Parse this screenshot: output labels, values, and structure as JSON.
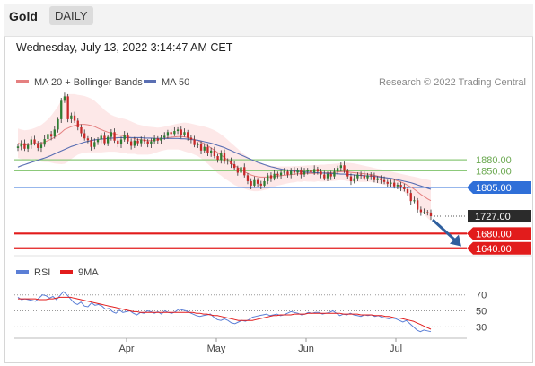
{
  "header": {
    "instrument": "Gold",
    "timeframe": "DAILY"
  },
  "datetime": "Wednesday, July 13, 2022 3:14:47 AM CET",
  "legend": {
    "ma20_label": "MA 20 + Bollinger Bands",
    "ma50_label": "MA 50",
    "credit": "Research © 2022 Trading Central"
  },
  "rsi_legend": {
    "rsi_label": "RSI",
    "ma_label": "9MA"
  },
  "colors": {
    "candle_up": "#2e7d32",
    "candle_down": "#c62828",
    "ma20": "#e58080",
    "bands": "#fbd5d5",
    "ma50": "#5a6fb3",
    "support_red": "#e21c1c",
    "pivot_blue": "#2f6fd8",
    "resistance_green": "#8cc97a",
    "price": "#2b2b2b",
    "rsi": "#5b7fd6",
    "rsi_ma": "#e21c1c"
  },
  "chart_data": [
    {
      "type": "candlestick",
      "title": "Gold",
      "timeframe": "DAILY",
      "xlabel": "",
      "ylabel": "",
      "x_ticks": [
        "Apr",
        "May",
        "Jun",
        "Jul"
      ],
      "ylim": [
        1620,
        2070
      ],
      "close": [
        1916,
        1925,
        1910,
        1920,
        1935,
        1925,
        1912,
        1921,
        1936,
        1950,
        1943,
        1962,
        1990,
        2040,
        2052,
        1990,
        2000,
        1986,
        1968,
        1952,
        1938,
        1933,
        1915,
        1928,
        1935,
        1945,
        1925,
        1942,
        1955,
        1932,
        1922,
        1935,
        1948,
        1930,
        1918,
        1932,
        1925,
        1935,
        1930,
        1922,
        1930,
        1938,
        1932,
        1940,
        1945,
        1955,
        1950,
        1958,
        1962,
        1948,
        1955,
        1940,
        1935,
        1920,
        1922,
        1905,
        1915,
        1898,
        1905,
        1890,
        1880,
        1898,
        1875,
        1878,
        1868,
        1858,
        1845,
        1860,
        1838,
        1822,
        1810,
        1825,
        1815,
        1810,
        1822,
        1838,
        1830,
        1842,
        1838,
        1845,
        1848,
        1840,
        1850,
        1845,
        1852,
        1840,
        1848,
        1852,
        1845,
        1855,
        1848,
        1840,
        1830,
        1842,
        1835,
        1848,
        1858,
        1865,
        1850,
        1835,
        1822,
        1830,
        1840,
        1838,
        1830,
        1838,
        1835,
        1825,
        1830,
        1825,
        1820,
        1815,
        1818,
        1808,
        1812,
        1805,
        1800,
        1790,
        1768,
        1770,
        1745,
        1738,
        1738,
        1737,
        1727
      ],
      "ma20": [
        1925,
        1922,
        1920,
        1921,
        1923,
        1924,
        1924,
        1925,
        1928,
        1932,
        1936,
        1941,
        1947,
        1954,
        1962,
        1966,
        1970,
        1973,
        1975,
        1976,
        1976,
        1975,
        1973,
        1970,
        1966,
        1962,
        1958,
        1955,
        1952,
        1950,
        1948,
        1946,
        1945,
        1942,
        1940,
        1938,
        1935,
        1934,
        1933,
        1932,
        1932,
        1933,
        1934,
        1936,
        1938,
        1940,
        1941,
        1942,
        1943,
        1943,
        1942,
        1940,
        1938,
        1935,
        1932,
        1928,
        1923,
        1918,
        1912,
        1906,
        1899,
        1893,
        1886,
        1879,
        1872,
        1865,
        1859,
        1853,
        1848,
        1843,
        1839,
        1836,
        1834,
        1833,
        1833,
        1833,
        1834,
        1835,
        1836,
        1837,
        1838,
        1839,
        1840,
        1841,
        1842,
        1842,
        1843,
        1843,
        1843,
        1843,
        1844,
        1844,
        1844,
        1845,
        1845,
        1846,
        1847,
        1848,
        1848,
        1847,
        1846,
        1845,
        1844,
        1843,
        1842,
        1841,
        1840,
        1838,
        1836,
        1834,
        1832,
        1830,
        1828,
        1826,
        1823,
        1820,
        1816,
        1811,
        1806,
        1800,
        1793,
        1786,
        1780,
        1774,
        1769
      ],
      "ma50": [
        1860,
        1864,
        1867,
        1870,
        1873,
        1876,
        1879,
        1882,
        1885,
        1888,
        1892,
        1896,
        1900,
        1904,
        1908,
        1912,
        1916,
        1919,
        1922,
        1925,
        1928,
        1930,
        1932,
        1934,
        1935,
        1936,
        1937,
        1938,
        1939,
        1939,
        1940,
        1940,
        1940,
        1940,
        1940,
        1940,
        1940,
        1940,
        1939,
        1939,
        1939,
        1938,
        1938,
        1938,
        1938,
        1938,
        1938,
        1938,
        1938,
        1937,
        1937,
        1936,
        1935,
        1934,
        1933,
        1931,
        1929,
        1927,
        1925,
        1922,
        1919,
        1916,
        1913,
        1909,
        1905,
        1901,
        1897,
        1893,
        1889,
        1885,
        1881,
        1877,
        1873,
        1870,
        1867,
        1864,
        1861,
        1859,
        1857,
        1855,
        1853,
        1852,
        1851,
        1850,
        1849,
        1848,
        1847,
        1846,
        1846,
        1845,
        1845,
        1844,
        1844,
        1843,
        1843,
        1842,
        1842,
        1841,
        1841,
        1840,
        1840,
        1839,
        1838,
        1838,
        1837,
        1836,
        1836,
        1835,
        1834,
        1833,
        1832,
        1831,
        1830,
        1828,
        1826,
        1824,
        1822,
        1820,
        1818,
        1815,
        1812,
        1809,
        1806,
        1803,
        1800
      ],
      "bb_upper": [
        1965,
        1962,
        1960,
        1961,
        1963,
        1966,
        1970,
        1975,
        1982,
        1990,
        2000,
        2012,
        2025,
        2040,
        2055,
        2058,
        2058,
        2058,
        2056,
        2055,
        2053,
        2050,
        2046,
        2040,
        2032,
        2024,
        2015,
        2008,
        2002,
        1998,
        1995,
        1993,
        1991,
        1988,
        1984,
        1980,
        1976,
        1974,
        1972,
        1970,
        1969,
        1968,
        1967,
        1968,
        1970,
        1972,
        1974,
        1976,
        1978,
        1980,
        1981,
        1980,
        1978,
        1976,
        1974,
        1972,
        1970,
        1967,
        1964,
        1960,
        1955,
        1949,
        1942,
        1934,
        1926,
        1918,
        1910,
        1902,
        1894,
        1888,
        1882,
        1877,
        1873,
        1870,
        1868,
        1866,
        1864,
        1863,
        1862,
        1862,
        1862,
        1862,
        1862,
        1863,
        1863,
        1864,
        1864,
        1865,
        1865,
        1866,
        1866,
        1867,
        1867,
        1868,
        1868,
        1869,
        1870,
        1871,
        1872,
        1872,
        1871,
        1870,
        1868,
        1866,
        1864,
        1862,
        1860,
        1858,
        1856,
        1854,
        1852,
        1850,
        1848,
        1846,
        1844,
        1842,
        1840,
        1838,
        1836,
        1834,
        1832,
        1830,
        1828,
        1826,
        1824
      ],
      "bb_lower": [
        1885,
        1882,
        1880,
        1881,
        1883,
        1882,
        1878,
        1875,
        1874,
        1874,
        1872,
        1870,
        1869,
        1868,
        1869,
        1874,
        1882,
        1888,
        1894,
        1897,
        1899,
        1900,
        1900,
        1900,
        1900,
        1900,
        1901,
        1902,
        1902,
        1902,
        1901,
        1899,
        1899,
        1896,
        1896,
        1896,
        1894,
        1894,
        1894,
        1894,
        1895,
        1898,
        1901,
        1904,
        1906,
        1908,
        1908,
        1908,
        1908,
        1906,
        1903,
        1900,
        1898,
        1894,
        1890,
        1884,
        1876,
        1869,
        1860,
        1852,
        1843,
        1837,
        1830,
        1824,
        1818,
        1812,
        1808,
        1804,
        1802,
        1798,
        1796,
        1795,
        1795,
        1796,
        1798,
        1800,
        1804,
        1807,
        1810,
        1812,
        1814,
        1816,
        1818,
        1819,
        1821,
        1820,
        1822,
        1821,
        1821,
        1820,
        1822,
        1821,
        1821,
        1822,
        1822,
        1823,
        1824,
        1825,
        1824,
        1822,
        1821,
        1820,
        1820,
        1820,
        1820,
        1820,
        1820,
        1818,
        1816,
        1814,
        1812,
        1810,
        1808,
        1806,
        1802,
        1798,
        1792,
        1784,
        1776,
        1766,
        1754,
        1742,
        1732,
        1722,
        1714
      ],
      "levels": [
        {
          "label": "1880.00",
          "value": 1880,
          "kind": "resistance"
        },
        {
          "label": "1850.00",
          "value": 1850,
          "kind": "resistance"
        },
        {
          "label": "1805.00",
          "value": 1805,
          "kind": "pivot"
        },
        {
          "label": "1727.00",
          "value": 1727,
          "kind": "last_price"
        },
        {
          "label": "1680.00",
          "value": 1680,
          "kind": "support"
        },
        {
          "label": "1640.00",
          "value": 1640,
          "kind": "support"
        }
      ],
      "forecast_arrow": {
        "from": 1727,
        "to": 1650,
        "direction": "down"
      }
    },
    {
      "type": "line",
      "title": "RSI",
      "xlabel": "",
      "ylabel": "",
      "y_ticks": [
        "70",
        "50",
        "30"
      ],
      "ylim": [
        18,
        82
      ],
      "series": [
        {
          "name": "RSI",
          "values": [
            67,
            64,
            65,
            64,
            63,
            62,
            66,
            70,
            69,
            66,
            68,
            64,
            69,
            74,
            70,
            65,
            60,
            58,
            61,
            56,
            55,
            60,
            57,
            58,
            56,
            52,
            53,
            49,
            47,
            51,
            48,
            49,
            50,
            47,
            45,
            48,
            47,
            50,
            49,
            47,
            49,
            46,
            50,
            48,
            47,
            49,
            52,
            51,
            50,
            48,
            46,
            44,
            43,
            44,
            45,
            46,
            42,
            39,
            38,
            40,
            38,
            35,
            34,
            36,
            38,
            37,
            39,
            42,
            43,
            44,
            45,
            46,
            44,
            45,
            46,
            44,
            45,
            47,
            49,
            48,
            47,
            45,
            46,
            48,
            47,
            48,
            48,
            46,
            47,
            48,
            50,
            47,
            44,
            46,
            45,
            47,
            45,
            44,
            43,
            45,
            44,
            45,
            43,
            44,
            42,
            41,
            40,
            41,
            40,
            38,
            36,
            38,
            34,
            30,
            26,
            24,
            26,
            25,
            24
          ]
        },
        {
          "name": "9MA",
          "values": [
            65,
            65,
            65,
            65,
            65,
            65,
            64,
            64,
            64,
            65,
            65,
            66,
            67,
            67,
            67,
            67,
            66,
            65,
            64,
            63,
            62,
            61,
            60,
            59,
            58,
            57,
            56,
            55,
            54,
            53,
            52,
            51,
            50,
            49,
            49,
            48,
            48,
            48,
            48,
            48,
            48,
            48,
            48,
            48,
            48,
            48,
            48,
            48,
            48,
            48,
            48,
            47,
            47,
            46,
            46,
            45,
            44,
            44,
            43,
            42,
            41,
            40,
            39,
            38,
            38,
            38,
            38,
            38,
            39,
            40,
            41,
            42,
            43,
            44,
            44,
            45,
            45,
            45,
            45,
            46,
            46,
            46,
            46,
            47,
            47,
            47,
            47,
            47,
            47,
            47,
            47,
            47,
            47,
            46,
            46,
            46,
            46,
            46,
            45,
            45,
            45,
            45,
            44,
            44,
            44,
            43,
            43,
            42,
            41,
            41,
            40,
            39,
            38,
            37,
            35,
            33,
            31,
            29,
            27
          ]
        }
      ]
    }
  ]
}
